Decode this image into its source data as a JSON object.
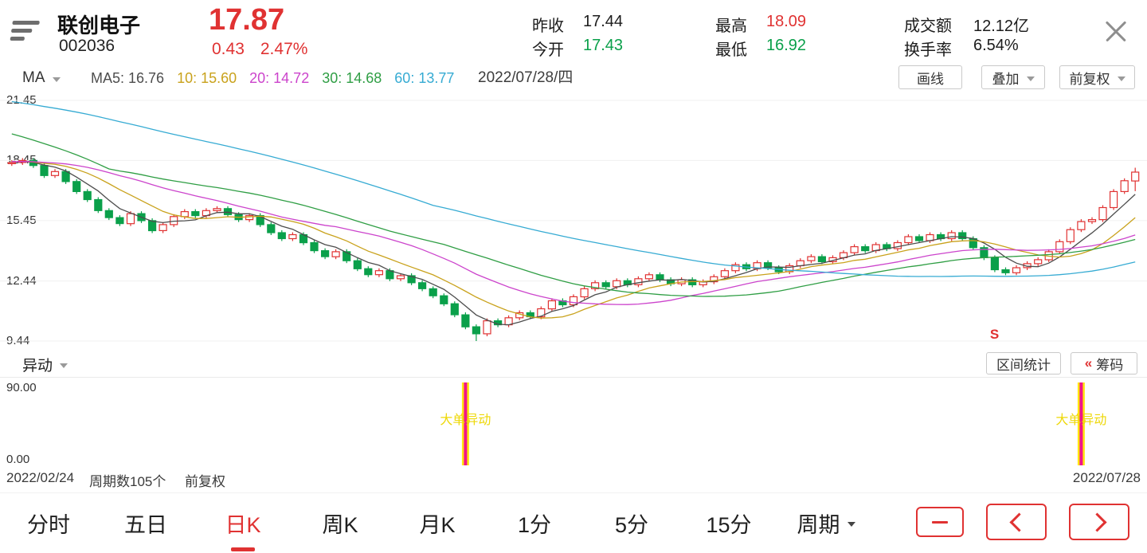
{
  "header": {
    "stock_name": "联创电子",
    "stock_code": "002036",
    "price": "17.87",
    "change_value": "0.43",
    "change_percent": "2.47%",
    "prev_close": {
      "label": "昨收",
      "value": "17.44"
    },
    "open": {
      "label": "今开",
      "value": "17.43"
    },
    "high": {
      "label": "最高",
      "value": "18.09"
    },
    "low": {
      "label": "最低",
      "value": "16.92"
    },
    "turnover": {
      "label": "成交额",
      "value": "12.12亿"
    },
    "turnover_rate": {
      "label": "换手率",
      "value": "6.54%"
    }
  },
  "ma_bar": {
    "selector_label": "MA",
    "date_label": "2022/07/28/四",
    "draw_button": "画线",
    "overlay_button": "叠加",
    "adjust_button": "前复权"
  },
  "chart_data": {
    "type": "candlestick",
    "title": "联创电子 002036 日K",
    "ylim": [
      9.44,
      21.45
    ],
    "y_ticks": [
      {
        "label": "21.45",
        "value": 21.45
      },
      {
        "label": "18.45",
        "value": 18.45
      },
      {
        "label": "15.45",
        "value": 15.45
      },
      {
        "label": "12.44",
        "value": 12.44
      },
      {
        "label": "9.44",
        "value": 9.44
      }
    ],
    "period_count": 105,
    "date_range": [
      "2022/02/24",
      "2022/07/28"
    ],
    "ma_lines": [
      {
        "period": 5,
        "label": "MA5: 16.76",
        "value": 16.76,
        "color": "#4d4d4d"
      },
      {
        "period": 10,
        "label": "10: 15.60",
        "value": 15.6,
        "color": "#c9a21c"
      },
      {
        "period": 20,
        "label": "20: 14.72",
        "value": 14.72,
        "color": "#cc44cc"
      },
      {
        "period": 30,
        "label": "30: 14.68",
        "value": 14.68,
        "color": "#2f9e44"
      },
      {
        "period": 60,
        "label": "60: 13.77",
        "value": 13.77,
        "color": "#36abd3"
      }
    ],
    "prehistory_segments": [
      [
        23.0,
        40
      ],
      [
        18.4,
        20
      ]
    ],
    "candles": [
      [
        18.3,
        18.47,
        18.18,
        18.35
      ],
      [
        18.35,
        18.57,
        18.23,
        18.45
      ],
      [
        18.45,
        18.57,
        18.08,
        18.2
      ],
      [
        18.2,
        18.32,
        17.58,
        17.7
      ],
      [
        17.7,
        18.02,
        17.58,
        17.9
      ],
      [
        17.9,
        18.02,
        17.28,
        17.4
      ],
      [
        17.4,
        17.52,
        16.78,
        16.9
      ],
      [
        16.9,
        17.02,
        16.38,
        16.5
      ],
      [
        16.5,
        16.62,
        15.83,
        15.95
      ],
      [
        15.95,
        16.07,
        15.48,
        15.6
      ],
      [
        15.6,
        15.72,
        15.18,
        15.3
      ],
      [
        15.3,
        15.92,
        15.18,
        15.8
      ],
      [
        15.8,
        15.92,
        15.33,
        15.45
      ],
      [
        15.45,
        15.57,
        14.83,
        14.95
      ],
      [
        14.95,
        15.37,
        14.83,
        15.25
      ],
      [
        15.25,
        15.77,
        15.13,
        15.65
      ],
      [
        15.65,
        16.02,
        15.53,
        15.9
      ],
      [
        15.9,
        16.02,
        15.58,
        15.7
      ],
      [
        15.7,
        16.07,
        15.58,
        15.95
      ],
      [
        15.95,
        16.17,
        15.83,
        16.05
      ],
      [
        16.05,
        16.17,
        15.63,
        15.75
      ],
      [
        15.75,
        15.87,
        15.38,
        15.5
      ],
      [
        15.5,
        15.82,
        15.38,
        15.7
      ],
      [
        15.7,
        15.82,
        15.13,
        15.25
      ],
      [
        15.25,
        15.37,
        14.73,
        14.85
      ],
      [
        14.85,
        14.97,
        14.43,
        14.55
      ],
      [
        14.55,
        14.87,
        14.43,
        14.75
      ],
      [
        14.75,
        14.87,
        14.23,
        14.35
      ],
      [
        14.35,
        14.47,
        13.83,
        13.95
      ],
      [
        13.95,
        14.07,
        13.53,
        13.65
      ],
      [
        13.65,
        14.02,
        13.53,
        13.9
      ],
      [
        13.9,
        14.02,
        13.33,
        13.45
      ],
      [
        13.45,
        13.57,
        12.93,
        13.05
      ],
      [
        13.05,
        13.17,
        12.63,
        12.75
      ],
      [
        12.75,
        13.07,
        12.63,
        12.95
      ],
      [
        12.95,
        13.07,
        12.43,
        12.55
      ],
      [
        12.55,
        12.82,
        12.43,
        12.7
      ],
      [
        12.7,
        12.82,
        12.23,
        12.35
      ],
      [
        12.35,
        12.47,
        11.93,
        12.05
      ],
      [
        12.05,
        12.17,
        11.58,
        11.7
      ],
      [
        11.7,
        11.82,
        11.18,
        11.3
      ],
      [
        11.3,
        11.42,
        10.63,
        10.75
      ],
      [
        10.75,
        10.87,
        10.03,
        10.15
      ],
      [
        10.15,
        10.27,
        9.44,
        9.8
      ],
      [
        9.8,
        10.57,
        9.68,
        10.45
      ],
      [
        10.45,
        10.57,
        10.13,
        10.25
      ],
      [
        10.25,
        10.72,
        10.13,
        10.6
      ],
      [
        10.6,
        10.97,
        10.48,
        10.85
      ],
      [
        10.85,
        10.97,
        10.53,
        10.65
      ],
      [
        10.65,
        11.17,
        10.53,
        11.05
      ],
      [
        11.05,
        11.57,
        10.93,
        11.45
      ],
      [
        11.45,
        11.57,
        11.13,
        11.25
      ],
      [
        11.25,
        11.77,
        11.13,
        11.65
      ],
      [
        11.65,
        12.17,
        11.53,
        12.05
      ],
      [
        12.05,
        12.47,
        11.93,
        12.35
      ],
      [
        12.35,
        12.47,
        12.03,
        12.15
      ],
      [
        12.15,
        12.57,
        12.03,
        12.45
      ],
      [
        12.45,
        12.57,
        12.13,
        12.25
      ],
      [
        12.25,
        12.67,
        12.13,
        12.55
      ],
      [
        12.55,
        12.87,
        12.43,
        12.75
      ],
      [
        12.75,
        12.87,
        12.38,
        12.5
      ],
      [
        12.5,
        12.62,
        12.18,
        12.3
      ],
      [
        12.3,
        12.62,
        12.18,
        12.5
      ],
      [
        12.5,
        12.62,
        12.13,
        12.25
      ],
      [
        12.25,
        12.52,
        12.13,
        12.4
      ],
      [
        12.4,
        12.77,
        12.28,
        12.65
      ],
      [
        12.65,
        13.07,
        12.53,
        12.95
      ],
      [
        12.95,
        13.37,
        12.83,
        13.25
      ],
      [
        13.25,
        13.37,
        12.93,
        13.05
      ],
      [
        13.05,
        13.47,
        12.93,
        13.35
      ],
      [
        13.35,
        13.47,
        12.98,
        13.1
      ],
      [
        13.1,
        13.22,
        12.78,
        12.9
      ],
      [
        12.9,
        13.32,
        12.78,
        13.2
      ],
      [
        13.2,
        13.57,
        13.08,
        13.45
      ],
      [
        13.45,
        13.77,
        13.33,
        13.65
      ],
      [
        13.65,
        13.77,
        13.28,
        13.4
      ],
      [
        13.4,
        13.72,
        13.28,
        13.6
      ],
      [
        13.6,
        13.97,
        13.48,
        13.85
      ],
      [
        13.85,
        14.27,
        13.73,
        14.15
      ],
      [
        14.15,
        14.27,
        13.83,
        13.95
      ],
      [
        13.95,
        14.37,
        13.83,
        14.25
      ],
      [
        14.25,
        14.37,
        13.93,
        14.05
      ],
      [
        14.05,
        14.47,
        13.93,
        14.35
      ],
      [
        14.35,
        14.77,
        14.23,
        14.65
      ],
      [
        14.65,
        14.77,
        14.33,
        14.45
      ],
      [
        14.45,
        14.87,
        14.33,
        14.75
      ],
      [
        14.75,
        14.87,
        14.43,
        14.55
      ],
      [
        14.55,
        14.97,
        14.43,
        14.85
      ],
      [
        14.85,
        14.97,
        14.43,
        14.55
      ],
      [
        14.55,
        14.67,
        13.98,
        14.1
      ],
      [
        14.1,
        14.22,
        13.48,
        13.6
      ],
      [
        13.6,
        13.72,
        12.88,
        13.0
      ],
      [
        13.0,
        13.12,
        12.73,
        12.85
      ],
      [
        12.85,
        13.22,
        12.73,
        13.1
      ],
      [
        13.1,
        13.42,
        12.98,
        13.3
      ],
      [
        13.3,
        13.62,
        13.18,
        13.5
      ],
      [
        13.5,
        14.02,
        13.38,
        13.9
      ],
      [
        13.9,
        14.52,
        13.78,
        14.4
      ],
      [
        14.4,
        15.12,
        14.28,
        15.0
      ],
      [
        15.0,
        15.52,
        14.88,
        15.4
      ],
      [
        15.4,
        15.62,
        15.28,
        15.5
      ],
      [
        15.5,
        16.22,
        15.38,
        16.1
      ],
      [
        16.1,
        17.02,
        15.98,
        16.9
      ],
      [
        16.9,
        17.56,
        16.78,
        17.44
      ],
      [
        17.43,
        18.09,
        16.92,
        17.87
      ]
    ],
    "sell_marker": {
      "label": "S",
      "index": 91
    },
    "colors": {
      "up": "#e03232",
      "down": "#0aa04a"
    }
  },
  "sub_panel": {
    "indicator_label": "异动",
    "range_stats_button": "区间统计",
    "chips_button": "筹码",
    "chips_icon": "«",
    "y_axis_top": "90.00",
    "y_axis_bottom": "0.00",
    "events": [
      {
        "index": 42,
        "label": "大单异动"
      },
      {
        "index": 99,
        "label": "大单异动"
      }
    ],
    "axis": {
      "start_date": "2022/02/24",
      "period_count_label": "周期数105个",
      "adjust_label": "前复权",
      "end_date": "2022/07/28"
    }
  },
  "tab_bar": {
    "tabs": [
      {
        "name": "tab-timeshare",
        "label": "分时",
        "active": false
      },
      {
        "name": "tab-five-day",
        "label": "五日",
        "active": false
      },
      {
        "name": "tab-daily-k",
        "label": "日K",
        "active": true
      },
      {
        "name": "tab-weekly-k",
        "label": "周K",
        "active": false
      },
      {
        "name": "tab-monthly-k",
        "label": "月K",
        "active": false
      },
      {
        "name": "tab-1min",
        "label": "1分",
        "active": false
      },
      {
        "name": "tab-5min",
        "label": "5分",
        "active": false
      },
      {
        "name": "tab-15min",
        "label": "15分",
        "active": false
      },
      {
        "name": "tab-period",
        "label": "周期",
        "active": false,
        "caret": true
      }
    ]
  },
  "icons": {
    "menu": "menu-icon",
    "close": "close-icon",
    "chevron_down": "chevron-down-icon",
    "chips_collapse": "chips-collapse-icon",
    "zoom_out": "minus-icon",
    "pan_left": "chevron-left-icon",
    "pan_right": "chevron-right-icon"
  },
  "theme": {
    "up_red": "#e03232",
    "down_green": "#0aa04a",
    "event_bar_yellow": "#ffe70f",
    "event_bar_magenta": "#f0148c",
    "event_label_yellow": "#eed808"
  }
}
